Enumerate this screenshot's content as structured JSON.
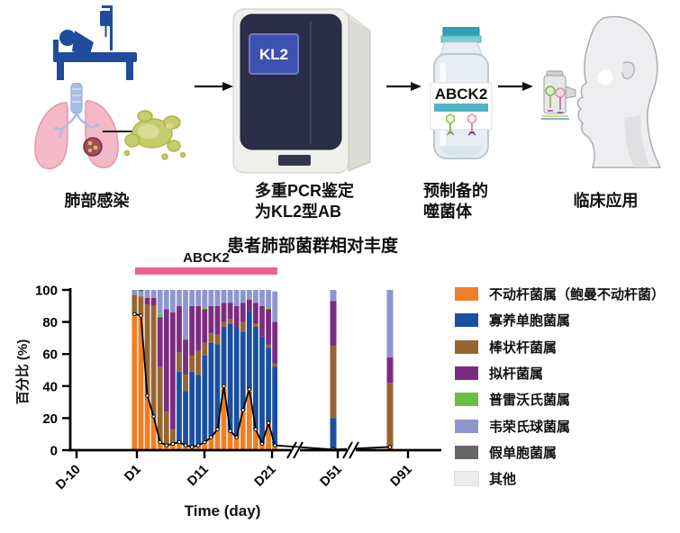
{
  "workflow": {
    "step1": {
      "label": "肺部感染"
    },
    "step2": {
      "line1": "多重PCR鉴定",
      "line2": "为KL2型AB",
      "screen_text": "KL2"
    },
    "step3": {
      "line1": "预制备的",
      "line2": "噬菌体",
      "vial_text": "ABCK2"
    },
    "step4": {
      "label": "临床应用"
    }
  },
  "chart_data": {
    "type": "bar",
    "subtype": "stacked-percent-with-overlay-line",
    "title": "患者肺部菌群相对丰度",
    "ylabel": "百分比 (%)",
    "xlabel": "Time (day)",
    "ylim": [
      0,
      100
    ],
    "yticks": [
      0,
      20,
      40,
      60,
      80,
      100
    ],
    "xticks": [
      "D-10",
      "D1",
      "D11",
      "D21",
      "D51",
      "D91"
    ],
    "axis_breaks_after": [
      "D21",
      "D51"
    ],
    "grid": false,
    "legend_position": "right",
    "treatment_marker": {
      "label": "ABCK2",
      "color": "#EF5E93",
      "span": "D1-D23"
    },
    "legend": [
      {
        "label": "不动杆菌属（鲍曼不动杆菌）",
        "color": "#EF7F24"
      },
      {
        "label": "寡养单胞菌属",
        "color": "#1A509F"
      },
      {
        "label": "棒状杆菌属",
        "color": "#976532"
      },
      {
        "label": "拟杆菌属",
        "color": "#7C2C80"
      },
      {
        "label": "普雷沃氏菌属",
        "color": "#6ABD45"
      },
      {
        "label": "韦荣氏球菌属",
        "color": "#8E96CF"
      },
      {
        "label": "假单胞菌属",
        "color": "#666666"
      },
      {
        "label": "其他",
        "color": "#ECECEC"
      }
    ],
    "overlay_line": {
      "follows_series": "不动杆菌属（鲍曼不动杆菌）",
      "color": "#000000",
      "marker": "white-dot"
    },
    "bars": [
      {
        "day": 1,
        "values": [
          85,
          0,
          12,
          0,
          0,
          3,
          0,
          0
        ]
      },
      {
        "day": 2,
        "values": [
          84,
          0,
          12,
          0,
          0,
          3,
          1,
          0
        ]
      },
      {
        "day": 3,
        "values": [
          34,
          0,
          57,
          4,
          0,
          5,
          0,
          0
        ]
      },
      {
        "day": 4,
        "values": [
          21,
          0,
          69,
          5,
          0,
          5,
          0,
          0
        ]
      },
      {
        "day": 5,
        "values": [
          5,
          0,
          47,
          31,
          2,
          15,
          0,
          0
        ]
      },
      {
        "day": 6,
        "values": [
          3,
          0,
          21,
          64,
          0,
          12,
          0,
          0
        ]
      },
      {
        "day": 7,
        "values": [
          4,
          0,
          9,
          73,
          0,
          14,
          0,
          0
        ]
      },
      {
        "day": 8,
        "values": [
          5,
          44,
          12,
          29,
          0,
          10,
          0,
          0
        ]
      },
      {
        "day": 9,
        "values": [
          3,
          34,
          10,
          22,
          0,
          31,
          0,
          0
        ]
      },
      {
        "day": 10,
        "values": [
          2,
          47,
          10,
          31,
          0,
          10,
          0,
          0
        ]
      },
      {
        "day": 11,
        "values": [
          3,
          44,
          15,
          28,
          0,
          10,
          0,
          0
        ]
      },
      {
        "day": 12,
        "values": [
          5,
          54,
          8,
          21,
          1,
          11,
          0,
          0
        ]
      },
      {
        "day": 13,
        "values": [
          8,
          59,
          6,
          17,
          0,
          10,
          0,
          0
        ]
      },
      {
        "day": 14,
        "values": [
          13,
          53,
          6,
          18,
          0,
          10,
          0,
          0
        ]
      },
      {
        "day": 15,
        "values": [
          40,
          37,
          3,
          12,
          0,
          8,
          0,
          0
        ]
      },
      {
        "day": 16,
        "values": [
          12,
          67,
          3,
          10,
          0,
          8,
          0,
          0
        ]
      },
      {
        "day": 17,
        "values": [
          8,
          69,
          0,
          13,
          0,
          10,
          0,
          0
        ]
      },
      {
        "day": 18,
        "values": [
          25,
          49,
          6,
          12,
          0,
          8,
          0,
          0
        ]
      },
      {
        "day": 19,
        "values": [
          38,
          49,
          0,
          7,
          0,
          6,
          0,
          0
        ]
      },
      {
        "day": 20,
        "values": [
          13,
          64,
          2,
          13,
          0,
          8,
          0,
          0
        ]
      },
      {
        "day": 21,
        "values": [
          4,
          67,
          0,
          19,
          0,
          10,
          0,
          0
        ]
      },
      {
        "day": 22,
        "values": [
          17,
          47,
          2,
          22,
          1,
          11,
          0,
          0
        ]
      },
      {
        "day": 23,
        "values": [
          3,
          49,
          2,
          26,
          0,
          19,
          0,
          1
        ]
      },
      {
        "day": 51,
        "values": [
          0,
          20,
          45,
          28,
          0,
          7,
          0,
          0
        ]
      },
      {
        "day": 91,
        "values": [
          2,
          0,
          40,
          16,
          0,
          42,
          0,
          0
        ]
      }
    ]
  }
}
